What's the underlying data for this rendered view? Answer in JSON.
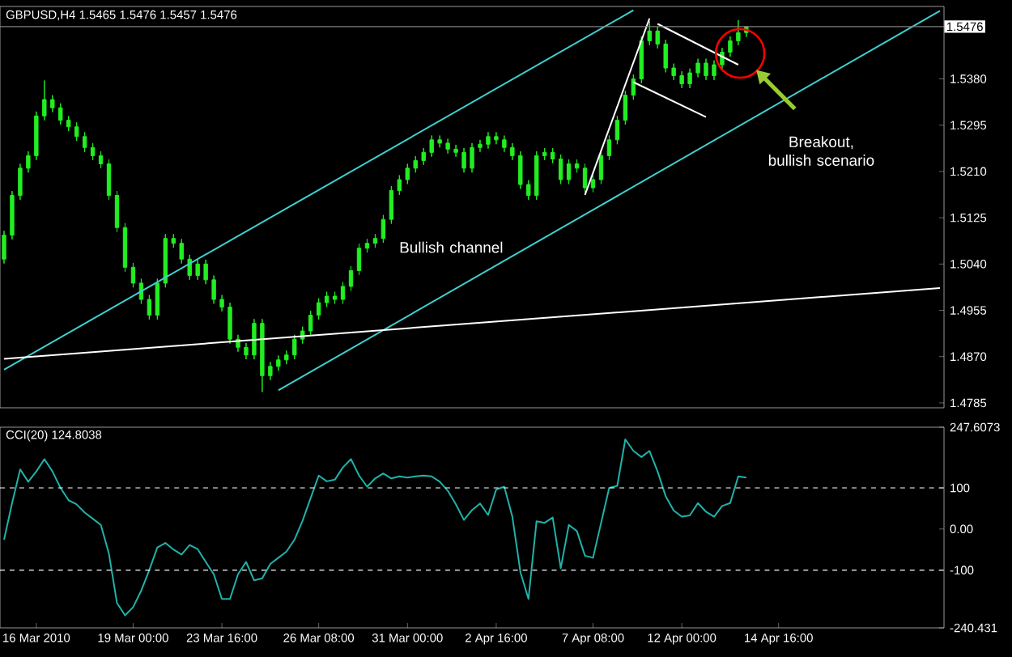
{
  "chart_data": [
    {
      "type": "candlestick",
      "title": "GBPUSD,H4 1.5465 1.5476 1.5457 1.5476",
      "categories": [
        null,
        null,
        null,
        null,
        null,
        null,
        null,
        null,
        null,
        null,
        null,
        null,
        null,
        null,
        null,
        null,
        null,
        null,
        null,
        null,
        null,
        null,
        null,
        null,
        null,
        null,
        null,
        null,
        null,
        null,
        null,
        null,
        null,
        null,
        null,
        null,
        null,
        null,
        null,
        null,
        null,
        null,
        null,
        null,
        null,
        null,
        null,
        null,
        null,
        null,
        null,
        null,
        null,
        null,
        null,
        null,
        null,
        null,
        null,
        null,
        null,
        null,
        null,
        null,
        null,
        null,
        null,
        null,
        null,
        null,
        null,
        null,
        null,
        null,
        null,
        null,
        null,
        null,
        null,
        null,
        null,
        null,
        null,
        null,
        null,
        null,
        null,
        null,
        null,
        null,
        null,
        null,
        null,
        null,
        null,
        null,
        null,
        null,
        null,
        null,
        null,
        null,
        null,
        null,
        null,
        null,
        null,
        null,
        null,
        null,
        null,
        null,
        null,
        null,
        null,
        null,
        null
      ],
      "ylim": [
        1.4776,
        1.5513
      ],
      "tick_labels": "y",
      "yticks": [
        {
          "value": 1.538,
          "label": "1.5380"
        },
        {
          "value": 1.5295,
          "label": "1.5295"
        },
        {
          "value": 1.521,
          "label": "1.5210"
        },
        {
          "value": 1.5125,
          "label": "1.5125"
        },
        {
          "value": 1.504,
          "label": "1.5040"
        },
        {
          "value": 1.4955,
          "label": "1.4955"
        },
        {
          "value": 1.487,
          "label": "1.4870"
        },
        {
          "value": 1.4785,
          "label": "1.4785"
        }
      ],
      "series": [
        {
          "type": "candlestick",
          "color": "#22ee22",
          "ohlc": [
            [
              1.5049,
              1.5101,
              1.5041,
              1.5093
            ],
            [
              1.5093,
              1.5174,
              1.5085,
              1.5166
            ],
            [
              1.5166,
              1.5224,
              1.5158,
              1.5216
            ],
            [
              1.5216,
              1.5247,
              1.5208,
              1.5239
            ],
            [
              1.5239,
              1.532,
              1.5231,
              1.5312
            ],
            [
              1.5312,
              1.5377,
              1.5304,
              1.5342
            ],
            [
              1.5342,
              1.535,
              1.5319,
              1.5327
            ],
            [
              1.5327,
              1.5335,
              1.5296,
              1.5304
            ],
            [
              1.5304,
              1.5312,
              1.5284,
              1.5292
            ],
            [
              1.5292,
              1.53,
              1.5266,
              1.5274
            ],
            [
              1.5274,
              1.5282,
              1.5246,
              1.5254
            ],
            [
              1.5254,
              1.5262,
              1.5231,
              1.5239
            ],
            [
              1.5239,
              1.5247,
              1.5216,
              1.5224
            ],
            [
              1.5224,
              1.5232,
              1.5158,
              1.5166
            ],
            [
              1.5166,
              1.5174,
              1.5099,
              1.5107
            ],
            [
              1.5107,
              1.5115,
              1.5026,
              1.5034
            ],
            [
              1.5034,
              1.5042,
              1.4997,
              1.5005
            ],
            [
              1.5005,
              1.5013,
              1.4967,
              1.4975
            ],
            [
              1.4975,
              1.4983,
              1.4938,
              1.4946
            ],
            [
              1.4946,
              1.5013,
              1.4938,
              1.5005
            ],
            [
              1.5005,
              1.5095,
              1.4997,
              1.5087
            ],
            [
              1.5087,
              1.5095,
              1.507,
              1.5078
            ],
            [
              1.5078,
              1.5086,
              1.5041,
              1.5049
            ],
            [
              1.5049,
              1.5057,
              1.5011,
              1.5019
            ],
            [
              1.5019,
              1.5048,
              1.5011,
              1.504
            ],
            [
              1.504,
              1.5048,
              1.5003,
              1.5011
            ],
            [
              1.5011,
              1.5019,
              1.4967,
              1.4975
            ],
            [
              1.4975,
              1.4983,
              1.4953,
              1.4961
            ],
            [
              1.4961,
              1.4969,
              1.4894,
              1.4902
            ],
            [
              1.4902,
              1.491,
              1.4879,
              1.4887
            ],
            [
              1.4887,
              1.4895,
              1.4865,
              1.4873
            ],
            [
              1.4873,
              1.4939,
              1.4865,
              1.4931
            ],
            [
              1.4931,
              1.4939,
              1.4805,
              1.4835
            ],
            [
              1.4835,
              1.486,
              1.4827,
              1.4852
            ],
            [
              1.4852,
              1.4872,
              1.4844,
              1.4864
            ],
            [
              1.4864,
              1.4881,
              1.4856,
              1.4873
            ],
            [
              1.4873,
              1.491,
              1.4865,
              1.4902
            ],
            [
              1.4902,
              1.4925,
              1.4894,
              1.4917
            ],
            [
              1.4917,
              1.4954,
              1.4909,
              1.4946
            ],
            [
              1.4946,
              1.4977,
              1.4938,
              1.4969
            ],
            [
              1.4969,
              1.4989,
              1.4961,
              1.4981
            ],
            [
              1.4981,
              1.4989,
              1.4967,
              1.4975
            ],
            [
              1.4975,
              1.5007,
              1.4967,
              1.4999
            ],
            [
              1.4999,
              1.5036,
              1.4991,
              1.5028
            ],
            [
              1.5028,
              1.5077,
              1.502,
              1.5069
            ],
            [
              1.5069,
              1.5086,
              1.5061,
              1.5078
            ],
            [
              1.5078,
              1.5095,
              1.507,
              1.5087
            ],
            [
              1.5087,
              1.513,
              1.5079,
              1.5122
            ],
            [
              1.5122,
              1.5183,
              1.5114,
              1.5175
            ],
            [
              1.5175,
              1.5203,
              1.5167,
              1.5195
            ],
            [
              1.5195,
              1.5224,
              1.5187,
              1.5216
            ],
            [
              1.5216,
              1.5238,
              1.5208,
              1.523
            ],
            [
              1.523,
              1.5253,
              1.5222,
              1.5245
            ],
            [
              1.5245,
              1.5276,
              1.5237,
              1.5268
            ],
            [
              1.5268,
              1.5276,
              1.5254,
              1.5262
            ],
            [
              1.5262,
              1.527,
              1.5243,
              1.5251
            ],
            [
              1.5251,
              1.5259,
              1.5237,
              1.5245
            ],
            [
              1.5245,
              1.5253,
              1.5208,
              1.5216
            ],
            [
              1.5216,
              1.5262,
              1.5208,
              1.5254
            ],
            [
              1.5254,
              1.5268,
              1.5246,
              1.526
            ],
            [
              1.526,
              1.5282,
              1.5252,
              1.5274
            ],
            [
              1.5274,
              1.5282,
              1.526,
              1.5268
            ],
            [
              1.5268,
              1.5276,
              1.5246,
              1.5254
            ],
            [
              1.5254,
              1.5262,
              1.5231,
              1.5239
            ],
            [
              1.5239,
              1.5247,
              1.5178,
              1.5186
            ],
            [
              1.5186,
              1.5194,
              1.5158,
              1.5166
            ],
            [
              1.5166,
              1.5247,
              1.5158,
              1.5239
            ],
            [
              1.5239,
              1.5253,
              1.5231,
              1.5245
            ],
            [
              1.5245,
              1.5253,
              1.5225,
              1.5233
            ],
            [
              1.5233,
              1.5241,
              1.5187,
              1.5195
            ],
            [
              1.5195,
              1.5232,
              1.5187,
              1.5224
            ],
            [
              1.5224,
              1.5232,
              1.5208,
              1.5216
            ],
            [
              1.5216,
              1.5224,
              1.5172,
              1.518
            ],
            [
              1.518,
              1.5203,
              1.5172,
              1.5195
            ],
            [
              1.5195,
              1.5247,
              1.5187,
              1.5239
            ],
            [
              1.5239,
              1.5276,
              1.5231,
              1.5268
            ],
            [
              1.5268,
              1.5312,
              1.526,
              1.5304
            ],
            [
              1.5304,
              1.5358,
              1.5296,
              1.535
            ],
            [
              1.535,
              1.5388,
              1.5342,
              1.538
            ],
            [
              1.538,
              1.5458,
              1.5372,
              1.545
            ],
            [
              1.545,
              1.5486,
              1.5442,
              1.5468
            ],
            [
              1.5468,
              1.5476,
              1.5436,
              1.5444
            ],
            [
              1.5444,
              1.5452,
              1.5392,
              1.54
            ],
            [
              1.54,
              1.5408,
              1.5378,
              1.5386
            ],
            [
              1.5386,
              1.5394,
              1.5363,
              1.5371
            ],
            [
              1.5371,
              1.5399,
              1.5363,
              1.5391
            ],
            [
              1.5391,
              1.5417,
              1.5383,
              1.5409
            ],
            [
              1.5409,
              1.5417,
              1.5378,
              1.5386
            ],
            [
              1.5386,
              1.5414,
              1.5378,
              1.5406
            ],
            [
              1.5406,
              1.5437,
              1.5398,
              1.5429
            ],
            [
              1.5429,
              1.5458,
              1.5421,
              1.545
            ],
            [
              1.545,
              1.5488,
              1.5442,
              1.5465
            ],
            [
              1.5465,
              1.5476,
              1.5457,
              1.5476
            ],
            null,
            null,
            null,
            null,
            null,
            null,
            null,
            null,
            null,
            null,
            null,
            null,
            null,
            null,
            null,
            null,
            null,
            null,
            null,
            null,
            null,
            null,
            null,
            null
          ]
        },
        {
          "type": "line",
          "color": "#40d0d0",
          "values": [
            1.4846,
            null,
            null,
            null,
            null,
            null,
            null,
            null,
            null,
            null,
            null,
            null,
            null,
            null,
            null,
            null,
            null,
            null,
            null,
            null,
            null,
            null,
            null,
            null,
            null,
            null,
            null,
            null,
            null,
            null,
            null,
            null,
            null,
            null,
            null,
            null,
            null,
            null,
            null,
            null,
            null,
            null,
            null,
            null,
            null,
            null,
            null,
            null,
            null,
            null,
            null,
            null,
            null,
            null,
            null,
            null,
            null,
            null,
            null,
            null,
            null,
            null,
            null,
            null,
            null,
            null,
            null,
            null,
            null,
            null,
            null,
            null,
            null,
            null,
            null,
            null,
            null,
            null,
            1.5506,
            null,
            null,
            null,
            null,
            null,
            null,
            null,
            null,
            null,
            null,
            null,
            null,
            null,
            null,
            null,
            null,
            null,
            null,
            null,
            null,
            null,
            null,
            null,
            null,
            null,
            null,
            null,
            null,
            null,
            null,
            null,
            null,
            null,
            null,
            null,
            null,
            null,
            null
          ]
        },
        {
          "type": "line",
          "color": "#40d0d0",
          "values": [
            null,
            null,
            null,
            null,
            null,
            null,
            null,
            null,
            null,
            null,
            null,
            null,
            null,
            null,
            null,
            null,
            null,
            null,
            null,
            null,
            null,
            null,
            null,
            null,
            null,
            null,
            null,
            null,
            null,
            null,
            null,
            null,
            null,
            null,
            1.4808,
            null,
            null,
            null,
            null,
            null,
            null,
            null,
            null,
            null,
            null,
            null,
            null,
            null,
            null,
            null,
            null,
            null,
            null,
            null,
            null,
            null,
            null,
            null,
            null,
            null,
            null,
            null,
            null,
            null,
            null,
            null,
            null,
            null,
            null,
            null,
            null,
            null,
            null,
            null,
            null,
            null,
            null,
            null,
            null,
            null,
            null,
            null,
            null,
            null,
            null,
            null,
            null,
            null,
            null,
            null,
            null,
            null,
            null,
            null,
            null,
            null,
            null,
            null,
            null,
            null,
            null,
            null,
            null,
            null,
            null,
            null,
            null,
            null,
            null,
            null,
            null,
            null,
            null,
            null,
            null,
            null,
            1.5505
          ]
        },
        {
          "type": "line",
          "color": "#ffffff",
          "values": [
            1.4866,
            null,
            null,
            null,
            null,
            null,
            null,
            null,
            null,
            null,
            null,
            null,
            null,
            null,
            null,
            null,
            null,
            null,
            null,
            null,
            null,
            null,
            null,
            null,
            null,
            null,
            null,
            null,
            null,
            null,
            null,
            null,
            null,
            null,
            null,
            null,
            null,
            null,
            null,
            null,
            null,
            null,
            null,
            null,
            null,
            null,
            null,
            null,
            null,
            null,
            null,
            null,
            null,
            null,
            null,
            null,
            null,
            null,
            null,
            null,
            null,
            null,
            null,
            null,
            null,
            null,
            null,
            null,
            null,
            null,
            null,
            null,
            null,
            null,
            null,
            null,
            null,
            null,
            null,
            null,
            null,
            null,
            null,
            null,
            null,
            null,
            null,
            null,
            null,
            null,
            null,
            null,
            null,
            null,
            null,
            null,
            null,
            null,
            null,
            null,
            null,
            null,
            null,
            null,
            null,
            null,
            null,
            null,
            null,
            null,
            null,
            null,
            null,
            null,
            null,
            null,
            1.4996
          ]
        },
        {
          "type": "line",
          "color": "#ffffff",
          "values": [
            null,
            null,
            null,
            null,
            null,
            null,
            null,
            null,
            null,
            null,
            null,
            null,
            null,
            null,
            null,
            null,
            null,
            null,
            null,
            null,
            null,
            null,
            null,
            null,
            null,
            null,
            null,
            null,
            null,
            null,
            null,
            null,
            null,
            null,
            null,
            null,
            null,
            null,
            null,
            null,
            null,
            null,
            null,
            null,
            null,
            null,
            null,
            null,
            null,
            null,
            null,
            null,
            null,
            null,
            null,
            null,
            null,
            null,
            null,
            null,
            null,
            null,
            null,
            null,
            null,
            null,
            null,
            null,
            null,
            null,
            null,
            null,
            1.5167,
            null,
            null,
            null,
            null,
            null,
            null,
            null,
            1.5491,
            null,
            null,
            null,
            null,
            null,
            null,
            null,
            null,
            null,
            null,
            null,
            null,
            null,
            null,
            null,
            null,
            null,
            null,
            null,
            null,
            null,
            null,
            null,
            null,
            null,
            null,
            null,
            null,
            null,
            null,
            null,
            null,
            null,
            null,
            null,
            null
          ]
        },
        {
          "type": "line",
          "color": "#ffffff",
          "values": [
            null,
            null,
            null,
            null,
            null,
            null,
            null,
            null,
            null,
            null,
            null,
            null,
            null,
            null,
            null,
            null,
            null,
            null,
            null,
            null,
            null,
            null,
            null,
            null,
            null,
            null,
            null,
            null,
            null,
            null,
            null,
            null,
            null,
            null,
            null,
            null,
            null,
            null,
            null,
            null,
            null,
            null,
            null,
            null,
            null,
            null,
            null,
            null,
            null,
            null,
            null,
            null,
            null,
            null,
            null,
            null,
            null,
            null,
            null,
            null,
            null,
            null,
            null,
            null,
            null,
            null,
            null,
            null,
            null,
            null,
            null,
            null,
            null,
            null,
            null,
            null,
            null,
            null,
            null,
            null,
            null,
            1.5481,
            null,
            null,
            null,
            null,
            null,
            null,
            null,
            null,
            null,
            1.5406,
            null,
            null,
            null,
            null,
            null,
            null,
            null,
            null,
            null,
            null,
            null,
            null,
            null,
            null,
            null,
            null,
            null,
            null,
            null,
            null,
            null,
            null,
            null,
            null,
            null
          ]
        },
        {
          "type": "line",
          "color": "#ffffff",
          "values": [
            null,
            null,
            null,
            null,
            null,
            null,
            null,
            null,
            null,
            null,
            null,
            null,
            null,
            null,
            null,
            null,
            null,
            null,
            null,
            null,
            null,
            null,
            null,
            null,
            null,
            null,
            null,
            null,
            null,
            null,
            null,
            null,
            null,
            null,
            null,
            null,
            null,
            null,
            null,
            null,
            null,
            null,
            null,
            null,
            null,
            null,
            null,
            null,
            null,
            null,
            null,
            null,
            null,
            null,
            null,
            null,
            null,
            null,
            null,
            null,
            null,
            null,
            null,
            null,
            null,
            null,
            null,
            null,
            null,
            null,
            null,
            null,
            null,
            null,
            null,
            null,
            null,
            null,
            1.5374,
            null,
            null,
            null,
            null,
            null,
            null,
            null,
            null,
            1.531,
            null,
            null,
            null,
            null,
            null,
            null,
            null,
            null,
            null,
            null,
            null,
            null,
            null,
            null,
            null,
            null,
            null,
            null,
            null,
            null,
            null,
            null,
            null,
            null,
            null,
            null,
            null,
            null,
            null
          ]
        }
      ],
      "ref_lines": [
        {
          "axis": "y",
          "value": 1.5476,
          "label": "1.5476",
          "color": "#808080"
        }
      ],
      "annotations": [
        "Bullish channel",
        "Breakout, bullish scenario"
      ]
    },
    {
      "type": "line",
      "title": "CCI(20) 124.8038",
      "color": "#20b2aa",
      "ylim": [
        -240.431,
        247.6073
      ],
      "categories": [
        null,
        null,
        null,
        null,
        "16 Mar 2010",
        null,
        null,
        null,
        null,
        null,
        null,
        null,
        null,
        null,
        null,
        null,
        "19 Mar 00:00",
        null,
        null,
        null,
        null,
        null,
        null,
        null,
        null,
        null,
        null,
        "23 Mar 16:00",
        null,
        null,
        null,
        null,
        null,
        null,
        null,
        null,
        null,
        null,
        null,
        "26 Mar 08:00",
        null,
        null,
        null,
        null,
        null,
        null,
        null,
        null,
        null,
        null,
        "31 Mar 00:00",
        null,
        null,
        null,
        null,
        null,
        null,
        null,
        null,
        null,
        null,
        "2 Apr 16:00",
        null,
        null,
        null,
        null,
        null,
        null,
        null,
        null,
        null,
        null,
        null,
        "7 Apr 08:00",
        null,
        null,
        null,
        null,
        null,
        null,
        null,
        null,
        null,
        null,
        "12 Apr 00:00",
        null,
        null,
        null,
        null,
        null,
        null,
        null,
        null,
        null,
        null,
        null,
        "14 Apr 16:00",
        null,
        null,
        null,
        null,
        null,
        null,
        null,
        null,
        null,
        null,
        null,
        null,
        null,
        null,
        null,
        null,
        null,
        null,
        null,
        null
      ],
      "yticks": [
        247.6073,
        100,
        {
          "value": 0,
          "label": "0.00"
        },
        -100,
        -240.431
      ],
      "values": [
        -26,
        63,
        145,
        115,
        140,
        170,
        140,
        100,
        70,
        60,
        40,
        25,
        10,
        -60,
        -180,
        -210,
        -190,
        -150,
        -100,
        -45,
        -34,
        -50,
        -62,
        -39,
        -49,
        -80,
        -110,
        -170,
        -170,
        -110,
        -80,
        -125,
        -120,
        -85,
        -70,
        -55,
        -26,
        20,
        75,
        130,
        116,
        120,
        150,
        170,
        130,
        103,
        123,
        135,
        123,
        128,
        125,
        128,
        130,
        128,
        115,
        93,
        60,
        22,
        46,
        62,
        34,
        96,
        103,
        30,
        -105,
        -170,
        19,
        15,
        28,
        -95,
        10,
        -5,
        -65,
        -70,
        15,
        100,
        105,
        218,
        190,
        175,
        190,
        140,
        80,
        45,
        30,
        33,
        63,
        42,
        30,
        56,
        63,
        128,
        125,
        null,
        null,
        null,
        null,
        null,
        null,
        null,
        null,
        null,
        null,
        null,
        null,
        null,
        null,
        null,
        null,
        null,
        null,
        null,
        null,
        null,
        null,
        null,
        null
      ],
      "ref_lines": [
        {
          "axis": "y",
          "value": 100,
          "line_style": "dashed",
          "color": "#ffffff"
        },
        {
          "axis": "y",
          "value": -100,
          "line_style": "dashed",
          "color": "#ffffff"
        }
      ]
    }
  ]
}
